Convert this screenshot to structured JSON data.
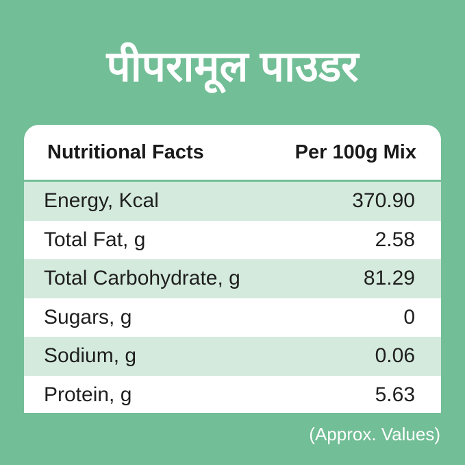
{
  "header": {
    "title": "पीपरामूल पाउडर"
  },
  "table": {
    "columns": [
      "Nutritional Facts",
      "Per 100g Mix"
    ],
    "rows": [
      [
        "Energy, Kcal",
        "370.90"
      ],
      [
        "Total Fat, g",
        "2.58"
      ],
      [
        "Total Carbohydrate, g",
        "81.29"
      ],
      [
        "Sugars, g",
        "0"
      ],
      [
        "Sodium, g",
        "0.06"
      ],
      [
        "Protein, g",
        "5.63"
      ]
    ]
  },
  "footnote": "(Approx. Values)"
}
